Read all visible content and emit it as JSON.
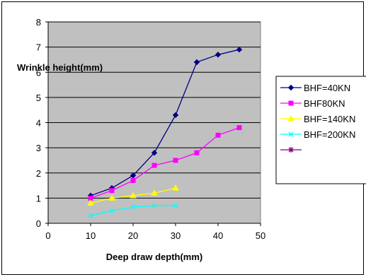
{
  "chart_data": {
    "type": "line",
    "title": "",
    "xlabel": "Deep draw depth(mm)",
    "ylabel": "Wrinkle height(mm)",
    "xlim": [
      0,
      50
    ],
    "ylim": [
      0,
      8
    ],
    "xticks": [
      0,
      10,
      20,
      30,
      40,
      50
    ],
    "yticks": [
      0,
      1,
      2,
      3,
      4,
      5,
      6,
      7,
      8
    ],
    "grid": "horizontal",
    "plot_background": "#c0c0c0",
    "legend_position": "right",
    "series": [
      {
        "name": "BHF=40KN",
        "color": "#000080",
        "marker": "diamond",
        "x": [
          10,
          15,
          20,
          25,
          30,
          35,
          40,
          45
        ],
        "y": [
          1.1,
          1.4,
          1.9,
          2.8,
          4.3,
          6.4,
          6.7,
          6.9
        ]
      },
      {
        "name": "BHF80KN",
        "color": "#ff00ff",
        "marker": "square",
        "x": [
          10,
          15,
          20,
          25,
          30,
          35,
          40,
          45
        ],
        "y": [
          1.0,
          1.3,
          1.7,
          2.3,
          2.5,
          2.8,
          3.5,
          3.8
        ]
      },
      {
        "name": "BHF=140KN",
        "color": "#ffff00",
        "marker": "triangle",
        "x": [
          10,
          15,
          20,
          25,
          30
        ],
        "y": [
          0.8,
          1.0,
          1.1,
          1.2,
          1.4
        ]
      },
      {
        "name": "BHF=200KN",
        "color": "#00ffff",
        "marker": "x",
        "x": [
          10,
          15,
          20,
          25,
          30
        ],
        "y": [
          0.3,
          0.5,
          0.65,
          0.7,
          0.7
        ]
      },
      {
        "name": "",
        "color": "#800080",
        "marker": "star",
        "x": [],
        "y": []
      }
    ]
  }
}
